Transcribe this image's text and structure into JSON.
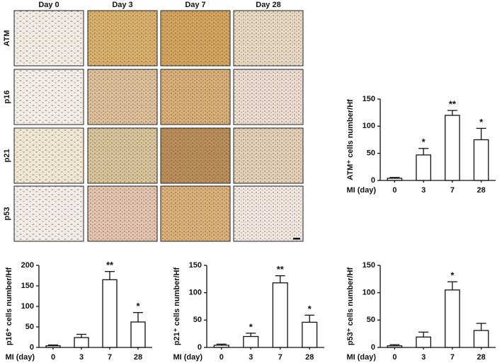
{
  "image_grid": {
    "columns": [
      "Day 0",
      "Day 3",
      "Day 7",
      "Day 28"
    ],
    "rows": [
      "ATM",
      "p16",
      "p21",
      "p53"
    ]
  },
  "chart_data": [
    {
      "type": "bar",
      "ylabel": "ATM⁺ cells number/Hf",
      "xlabel": "MI (day)",
      "categories": [
        "0",
        "3",
        "7",
        "28"
      ],
      "values": [
        4,
        47,
        120,
        75
      ],
      "errors": [
        1.5,
        12,
        9,
        21
      ],
      "annotations": [
        null,
        "*",
        "**",
        "*"
      ],
      "color": "#ffffff",
      "ylim": [
        0,
        150
      ],
      "yticks": [
        0,
        50,
        100,
        150
      ]
    },
    {
      "type": "bar",
      "ylabel": "p16⁺ cells number/Hf",
      "xlabel": "MI (day)",
      "categories": [
        "0",
        "3",
        "7",
        "28"
      ],
      "values": [
        4,
        24,
        165,
        62
      ],
      "errors": [
        2,
        8,
        20,
        23
      ],
      "annotations": [
        null,
        null,
        "**",
        "*"
      ],
      "color": "#ffffff",
      "ylim": [
        0,
        200
      ],
      "yticks": [
        0,
        50,
        100,
        150,
        200
      ]
    },
    {
      "type": "bar",
      "ylabel": "p21⁺ cells number/Hf",
      "xlabel": "MI (day)",
      "categories": [
        "0",
        "3",
        "7",
        "28"
      ],
      "values": [
        4,
        20,
        118,
        46
      ],
      "errors": [
        2,
        6,
        13,
        13
      ],
      "annotations": [
        null,
        "*",
        "**",
        "*"
      ],
      "color": "#ffffff",
      "ylim": [
        0,
        150
      ],
      "yticks": [
        0,
        50,
        100,
        150
      ]
    },
    {
      "type": "bar",
      "ylabel": "p53⁺ cells number/Hf",
      "xlabel": "MI (day)",
      "categories": [
        "0",
        "3",
        "7",
        "28"
      ],
      "values": [
        3,
        19,
        105,
        31
      ],
      "errors": [
        2,
        9,
        15,
        13
      ],
      "annotations": [
        null,
        null,
        "*",
        null
      ],
      "color": "#ffffff",
      "ylim": [
        0,
        150
      ],
      "yticks": [
        0,
        50,
        100,
        150
      ]
    }
  ]
}
